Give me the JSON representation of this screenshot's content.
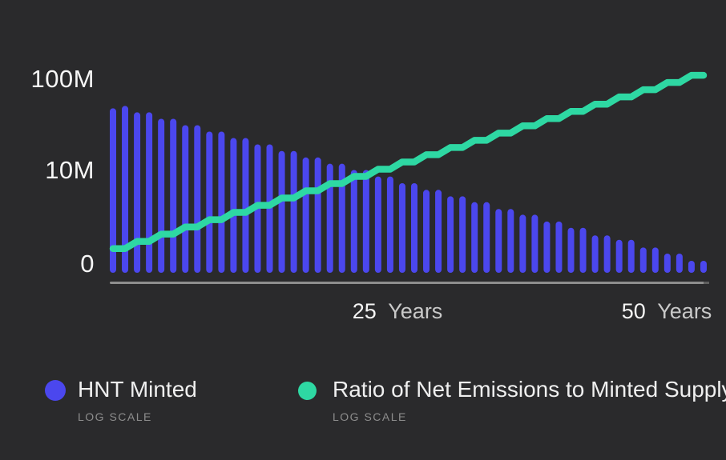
{
  "colors": {
    "background": "#2a2a2c",
    "bar": "#4b47ee",
    "line": "#2ed8a3",
    "axis": "#8e8e8e",
    "axis_end": "#5f5f5f",
    "text_bright": "#f7f7f7",
    "text_medium": "#c9c9c9",
    "text_dim": "#8d8d8d"
  },
  "y_axis": {
    "labels": [
      "100M",
      "10M",
      "0"
    ]
  },
  "x_axis": {
    "labels": [
      {
        "num": "25",
        "unit": "Years"
      },
      {
        "num": "50",
        "unit": "Years"
      }
    ]
  },
  "legend": {
    "items": [
      {
        "label": "HNT Minted",
        "sub": "LOG SCALE",
        "color": "#4b47ee"
      },
      {
        "label": "Ratio of Net Emissions to Minted Supply",
        "sub": "LOG SCALE",
        "color": "#2ed8a3"
      }
    ]
  },
  "chart_data": {
    "type": "combo",
    "x_unit": "years",
    "x": [
      1,
      2,
      3,
      4,
      5,
      6,
      7,
      8,
      9,
      10,
      11,
      12,
      13,
      14,
      15,
      16,
      17,
      18,
      19,
      20,
      21,
      22,
      23,
      24,
      25,
      26,
      27,
      28,
      29,
      30,
      31,
      32,
      33,
      34,
      35,
      36,
      37,
      38,
      39,
      40,
      41,
      42,
      43,
      44,
      45,
      46,
      47,
      48,
      49,
      50
    ],
    "series": [
      {
        "name": "HNT Minted",
        "type": "bar",
        "scale": "log",
        "unit": "millions of HNT per year",
        "values": [
          47,
          50,
          42.5,
          42.5,
          36.1,
          36.1,
          30.7,
          30.7,
          26.1,
          26.1,
          22.2,
          22.2,
          18.9,
          18.9,
          16.0,
          16.0,
          13.6,
          13.6,
          11.6,
          11.6,
          9.9,
          9.9,
          8.4,
          8.4,
          7.1,
          7.1,
          6.0,
          6.0,
          5.1,
          5.1,
          4.4,
          4.4,
          3.7,
          3.7,
          3.2,
          3.2,
          2.7,
          2.7,
          2.3,
          2.3,
          1.9,
          1.9,
          1.7,
          1.7,
          1.4,
          1.4,
          1.2,
          1.2,
          1.0,
          1.0
        ]
      },
      {
        "name": "Ratio of Net Emissions to Minted Supply",
        "type": "line",
        "scale": "log",
        "unit": "ratio (log axis)",
        "values": [
          1.36,
          1.36,
          1.63,
          1.63,
          1.96,
          1.96,
          2.35,
          2.35,
          2.82,
          2.82,
          3.39,
          3.39,
          4.06,
          4.06,
          4.88,
          4.88,
          5.85,
          5.85,
          7.02,
          7.02,
          8.43,
          8.43,
          10.11,
          10.11,
          12.13,
          12.13,
          14.56,
          14.56,
          17.47,
          17.47,
          20.97,
          20.97,
          25.16,
          25.16,
          30.19,
          30.19,
          36.23,
          36.23,
          43.48,
          43.48,
          52.17,
          52.17,
          62.61,
          62.61,
          75.13,
          75.13,
          90.15,
          90.15,
          108.2,
          108.2
        ]
      }
    ],
    "ylabels": [
      "100M",
      "10M",
      "0"
    ],
    "xlabels": [
      "25 Years",
      "50 Years"
    ],
    "grid": false,
    "legend_position": "bottom"
  }
}
